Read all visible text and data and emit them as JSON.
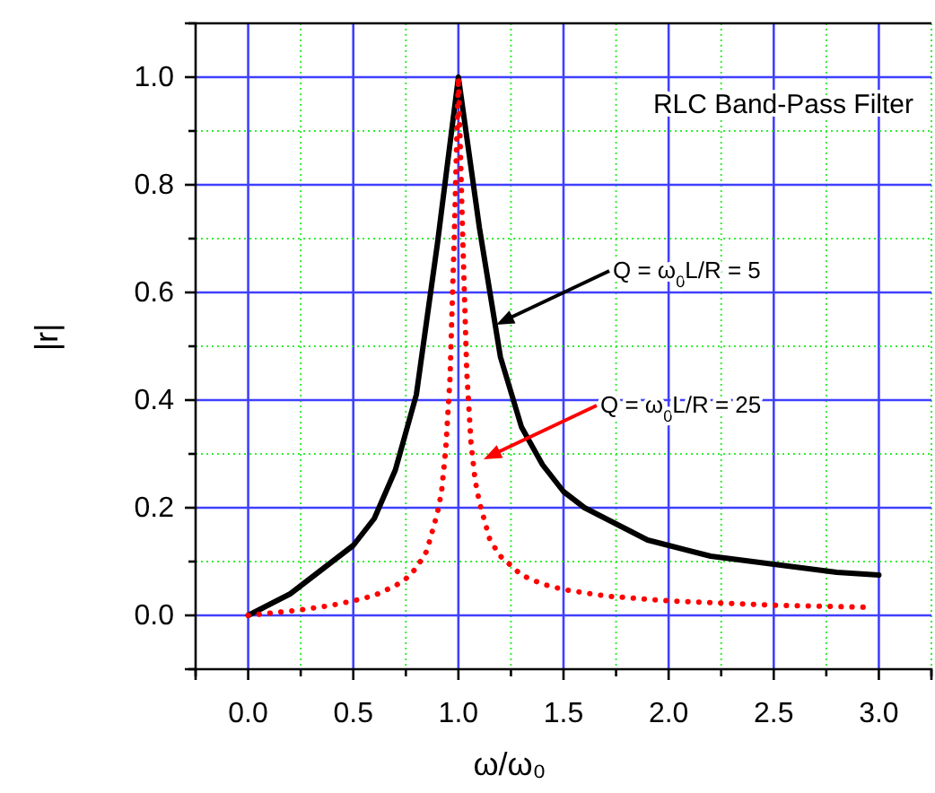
{
  "chart_data": {
    "type": "line",
    "title": "RLC Band-Pass Filter",
    "xlabel": "ω/ω₀",
    "ylabel": "|r|",
    "xlim": [
      -0.25,
      3.25
    ],
    "ylim": [
      -0.1,
      1.1
    ],
    "xticks": [
      {
        "value": -0.25,
        "label": null
      },
      {
        "value": 0,
        "label": "0.0"
      },
      {
        "value": 0.25,
        "label": null
      },
      {
        "value": 0.5,
        "label": "0.5"
      },
      {
        "value": 0.75,
        "label": null
      },
      {
        "value": 1,
        "label": "1.0"
      },
      {
        "value": 1.25,
        "label": null
      },
      {
        "value": 1.5,
        "label": "1.5"
      },
      {
        "value": 1.75,
        "label": null
      },
      {
        "value": 2,
        "label": "2.0"
      },
      {
        "value": 2.25,
        "label": null
      },
      {
        "value": 2.5,
        "label": "2.5"
      },
      {
        "value": 2.75,
        "label": null
      },
      {
        "value": 3,
        "label": "3.0"
      },
      {
        "value": 3.25,
        "label": null
      }
    ],
    "yticks": [
      {
        "value": -0.1,
        "label": null
      },
      {
        "value": 0,
        "label": "0.0"
      },
      {
        "value": 0.1,
        "label": null
      },
      {
        "value": 0.2,
        "label": "0.2"
      },
      {
        "value": 0.3,
        "label": null
      },
      {
        "value": 0.4,
        "label": "0.4"
      },
      {
        "value": 0.5,
        "label": null
      },
      {
        "value": 0.6,
        "label": "0.6"
      },
      {
        "value": 0.7,
        "label": null
      },
      {
        "value": 0.8,
        "label": "0.8"
      },
      {
        "value": 0.9,
        "label": null
      },
      {
        "value": 1,
        "label": "1.0"
      },
      {
        "value": 1.1,
        "label": null
      }
    ],
    "grid": true,
    "series": [
      {
        "color": "#000000",
        "line_style": "solid",
        "x": [
          0,
          0.1,
          0.2,
          0.3,
          0.4,
          0.5,
          0.6,
          0.7,
          0.8,
          0.9,
          1.0,
          1.1,
          1.2,
          1.3,
          1.4,
          1.5,
          1.6,
          1.7,
          1.8,
          1.9,
          2.0,
          2.2,
          2.4,
          2.6,
          2.8,
          3.0
        ],
        "values": [
          0,
          0.02,
          0.04,
          0.07,
          0.1,
          0.13,
          0.18,
          0.27,
          0.41,
          0.69,
          1.0,
          0.72,
          0.48,
          0.35,
          0.28,
          0.23,
          0.2,
          0.18,
          0.16,
          0.14,
          0.13,
          0.11,
          0.1,
          0.09,
          0.08,
          0.075
        ]
      },
      {
        "color": "#ff0000",
        "line_style": "dotted",
        "x": [
          0,
          0.1,
          0.2,
          0.3,
          0.4,
          0.5,
          0.6,
          0.7,
          0.75,
          0.8,
          0.85,
          0.9,
          0.92,
          0.94,
          0.96,
          0.98,
          1.0,
          1.02,
          1.04,
          1.06,
          1.08,
          1.1,
          1.15,
          1.2,
          1.3,
          1.4,
          1.5,
          1.7,
          2.0,
          2.5,
          2.95
        ],
        "values": [
          0,
          0.004,
          0.008,
          0.013,
          0.019,
          0.027,
          0.037,
          0.055,
          0.068,
          0.088,
          0.12,
          0.19,
          0.23,
          0.31,
          0.44,
          0.7,
          1.0,
          0.71,
          0.45,
          0.32,
          0.25,
          0.21,
          0.14,
          0.11,
          0.075,
          0.058,
          0.048,
          0.036,
          0.027,
          0.019,
          0.015
        ]
      }
    ],
    "annotations": [
      {
        "text": "Q = ω$_{0}$L/R = 5",
        "x": 1.18,
        "y": 0.54
      },
      {
        "text": "Q = ω$_{0}$L/R = 25",
        "x": 1.12,
        "y": 0.29
      }
    ]
  }
}
